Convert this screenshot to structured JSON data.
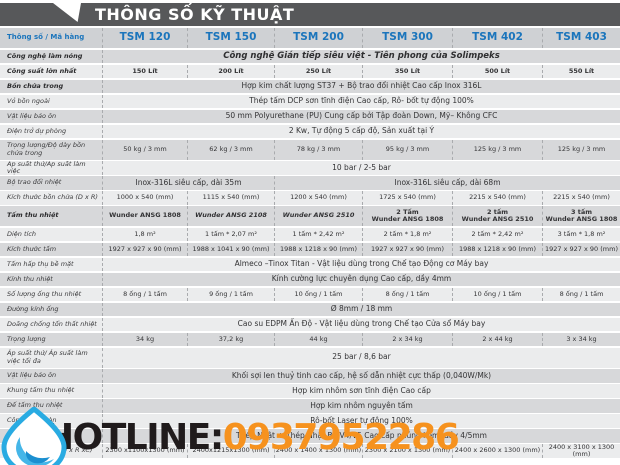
{
  "title": "THÔNG SỐ KỸ THUẬT",
  "table": {
    "corner_label": "Thông số / Mã hàng",
    "models": [
      "TSM 120",
      "TSM 150",
      "TSM 200",
      "TSM 300",
      "TSM 402",
      "TSM 403"
    ],
    "rows": [
      {
        "label": "Công nghệ làm nóng",
        "label_bold": true,
        "span": "Công nghệ Gián tiếp siêu việt - Tiên phong của Solimpeks",
        "hero": true
      },
      {
        "label": "Công suất lớn nhất",
        "label_bold": true,
        "cells": [
          "150 Lít",
          "200 Lít",
          "250 Lít",
          "350 Lít",
          "500 Lít",
          "550 Lít"
        ],
        "cells_bold": true
      },
      {
        "label": "Bồn chứa trong",
        "label_bold": true,
        "span": "Hợp kim chất lượng ST37 + Bộ trao đổi nhiệt Cao cấp Inox 316L"
      },
      {
        "label": "Vỏ bồn ngoài",
        "span": "Thép tấm DCP sơn tĩnh điện Cao cấp, Rô- bốt tự động 100%"
      },
      {
        "label": "Vật liệu bảo ôn",
        "span": "50 mm Polyurethane (PU) Cung cấp bởi Tập đoàn Down, Mỹ– Không CFC"
      },
      {
        "label": "Điện trở dự phòng",
        "span": "2 Kw, Tự động 5 cấp độ, Sản xuất tại Ý"
      },
      {
        "label": "Trọng lượng/Độ dày bồn chứa trong",
        "cells": [
          "50 kg / 3 mm",
          "62 kg / 3 mm",
          "78 kg / 3 mm",
          "95 kg / 3 mm",
          "125 kg / 3 mm",
          "125 kg / 3 mm"
        ],
        "tall": true
      },
      {
        "label": "Áp suất thử/Áp suất  làm việc",
        "span": "10 bar / 2-5 bar"
      },
      {
        "label": "Bộ trao đổi nhiệt",
        "split": [
          "Inox-316L siêu cấp, dài 35m",
          "Inox-316L siêu cấp, dài 68m"
        ]
      },
      {
        "label": "Kích thước bồn chứa (D x R)",
        "cells": [
          "1000 x 540 (mm)",
          "1115 x 540 (mm)",
          "1200 x 540 (mm)",
          "1725 x 540 (mm)",
          "2215 x 540 (mm)",
          "2215 x 540 (mm)"
        ]
      },
      {
        "label": "Tấm thu nhiệt",
        "label_bold": true,
        "cells": [
          "Wunder ANSG 1808",
          "Wunder ANSG 2108",
          "Wunder ANSG 2510",
          "2 Tấm\nWunder ANSG 1808",
          "2 tấm\nWunder ANSG 2510",
          "3 tấm\nWunder ANSG 1808"
        ],
        "cells_bold": true,
        "cells_italic": [
          1,
          2
        ],
        "tall": true
      },
      {
        "label": "Diện tích",
        "cells": [
          "1,8 m²",
          "1 tấm * 2,07 m²",
          "1 tấm * 2,42 m²",
          "2 tấm * 1,8 m²",
          "2 tấm * 2,42 m²",
          "3 tấm * 1,8 m²"
        ]
      },
      {
        "label": "Kích thước tấm",
        "cells": [
          "1927 x 927 x 90 (mm)",
          "1988 x 1041 x 90 (mm)",
          "1988 x 1218 x 90 (mm)",
          "1927 x 927 x 90 (mm)",
          "1988 x 1218 x 90 (mm)",
          "1927 x 927 x 90 (mm)"
        ]
      },
      {
        "label": "Tấm hấp thụ bề mặt",
        "span": "Almeco –Tinox Titan - Vật liệu dùng trong Chế tạo Động cơ Máy bay"
      },
      {
        "label": "Kính thu nhiệt",
        "span": "Kính cường lực chuyên dụng Cao cấp, dầy 4mm"
      },
      {
        "label": "Số lượng ống thu nhiệt",
        "cells": [
          "8 ống / 1 tấm",
          "9 ống / 1 tấm",
          "10 ống / 1 tấm",
          "8 ống / 1 tấm",
          "10 ống / 1 tấm",
          "8 ống / 1 tấm"
        ]
      },
      {
        "label": "Đường kính ống",
        "span": "Ø 8mm  / 18 mm"
      },
      {
        "label": "Doăng chống tổn thất nhiệt",
        "span": "Cao su EDPM Ấn Độ - Vật liệu dùng trong Chế tạo Cửa sổ Máy bay"
      },
      {
        "label": "Trọng lượng",
        "cells": [
          "34 kg",
          "37,2 kg",
          "44 kg",
          "2 x 34 kg",
          "2 x 44 kg",
          "3 x 34 kg"
        ]
      },
      {
        "label": "Áp suất thử/ Áp suất làm việc tối đa",
        "span": "25 bar / 8,6 bar",
        "tall": true
      },
      {
        "label": "Vật liệu bảo ôn",
        "span": "Khối sợi len thuỷ tinh cao cấp, hệ số dẫn nhiệt cực thấp (0,040W/Mk)"
      },
      {
        "label": "Khung tấm thu nhiệt",
        "span": "Hợp kim nhôm sơn tĩnh điện Cao cấp"
      },
      {
        "label": "Đế tấm thu nhiệt",
        "span": "Hợp kim nhôm nguyên tấm"
      },
      {
        "label": "Công nghệ hàn",
        "span": "Rô-bốt Laser tự động 100%"
      },
      {
        "label": "Chân máy",
        "label_bold": true,
        "span": "Thép Nhật + Thép Nhật Bề V4/V5 Cao cấp nhúng kẽm, dầy 4/5mm"
      },
      {
        "label": "Kích thước máy (D x R xC)",
        "cells": [
          "2300 x1100x1300 (mm)",
          "2400x1215x1300 (mm)",
          "2400 x 1400 x 1300 (mm)",
          "2300 x 2100 x 1300 (mm)",
          "2400 x 2600 x 1300 (mm)",
          "2400 x 3100 x 1300 (mm)"
        ]
      }
    ]
  },
  "watermark": {
    "label": "HOTLINE:",
    "phone": "0937952286"
  },
  "colors": {
    "header_gray": "#57585a",
    "accent_blue": "#1b75bc",
    "row_dark": "#d7d8da",
    "row_light": "#ebeced",
    "hotline_black": "#201b1c",
    "hotline_orange": "#f6921e",
    "logo_blue": "#29abe2"
  }
}
